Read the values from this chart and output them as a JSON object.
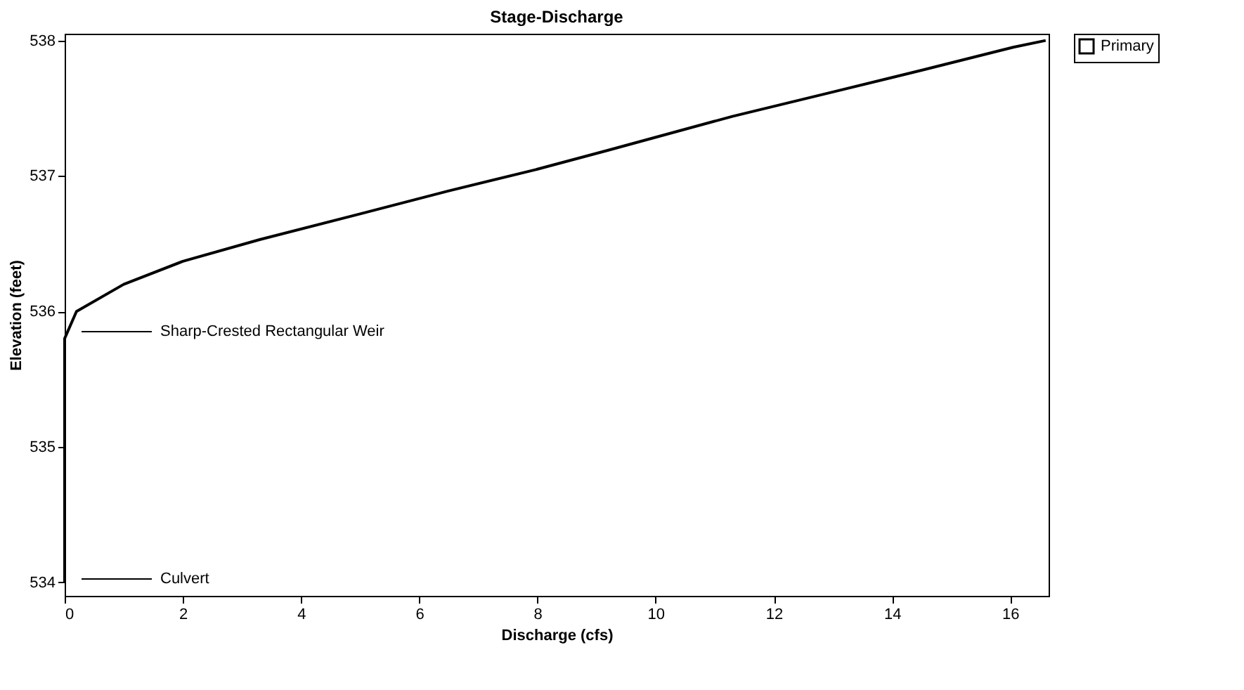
{
  "chart_data": {
    "type": "line",
    "title": "Stage-Discharge",
    "xlabel": "Discharge (cfs)",
    "ylabel": "Elevation (feet)",
    "xlim": [
      0,
      16.65
    ],
    "ylim": [
      533.9,
      538.05
    ],
    "xticks": [
      0,
      2,
      4,
      6,
      8,
      10,
      12,
      14,
      16
    ],
    "yticks": [
      534,
      535,
      536,
      537,
      538
    ],
    "grid": false,
    "legend": "top right",
    "marker": "none",
    "line_style": "solid",
    "series": [
      {
        "name": "Primary",
        "color": "#000000",
        "x": [
          0,
          0,
          0.2,
          1,
          2,
          3.3,
          5,
          6.5,
          8,
          9.2,
          11.3,
          13,
          14.5,
          16.05,
          16.6
        ],
        "values": [
          534,
          535.8,
          536.0,
          536.2,
          536.37,
          536.53,
          536.72,
          536.89,
          537.05,
          537.19,
          537.44,
          537.62,
          537.78,
          537.95,
          538.0
        ]
      }
    ],
    "annotations": [
      "Sharp-Crested Rectangular Weir",
      "Culvert"
    ]
  }
}
